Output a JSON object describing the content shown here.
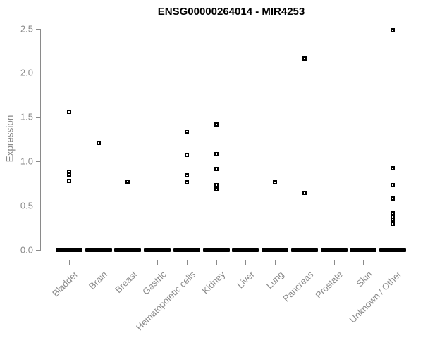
{
  "chart_data": {
    "type": "scatter",
    "title": "ENSG00000264014 - MIR4253",
    "xlabel": "",
    "ylabel": "Expression",
    "ylim": [
      0.0,
      2.5
    ],
    "ytick_labels": [
      "0.0",
      "0.5",
      "1.0",
      "1.5",
      "2.0",
      "2.5"
    ],
    "grid": false,
    "legend_position": "none",
    "marker": "small-open-black-square",
    "categories": [
      "Bladder",
      "Brain",
      "Breast",
      "Gastric",
      "Hematopoietic cells",
      "Kidney",
      "Liver",
      "Lung",
      "Pancreas",
      "Prostate",
      "Skin",
      "Unknown / Other"
    ],
    "series": [
      {
        "name": "Bladder",
        "values": [
          1.56,
          0.88,
          0.85,
          0.78
        ],
        "zero_cluster": true
      },
      {
        "name": "Brain",
        "values": [
          1.21
        ],
        "zero_cluster": true
      },
      {
        "name": "Breast",
        "values": [
          0.77
        ],
        "zero_cluster": true
      },
      {
        "name": "Gastric",
        "values": [],
        "zero_cluster": true
      },
      {
        "name": "Hematopoietic cells",
        "values": [
          1.33,
          1.07,
          0.84,
          0.76
        ],
        "zero_cluster": true
      },
      {
        "name": "Kidney",
        "values": [
          1.41,
          1.08,
          0.91,
          0.73,
          0.68
        ],
        "zero_cluster": true
      },
      {
        "name": "Liver",
        "values": [],
        "zero_cluster": true
      },
      {
        "name": "Lung",
        "values": [
          0.76
        ],
        "zero_cluster": true
      },
      {
        "name": "Pancreas",
        "values": [
          2.16,
          0.64
        ],
        "zero_cluster": true
      },
      {
        "name": "Prostate",
        "values": [],
        "zero_cluster": true
      },
      {
        "name": "Skin",
        "values": [],
        "zero_cluster": true
      },
      {
        "name": "Unknown / Other",
        "values": [
          2.48,
          0.92,
          0.73,
          0.58,
          0.41,
          0.37,
          0.34,
          0.29
        ],
        "zero_cluster": true
      }
    ],
    "zero_cluster_note": "every category shows a thick dashed black bar at y=0 formed by many overlapping samples with expression 0",
    "colors": {
      "marker": "#000000",
      "axis": "#8a8a8a",
      "axis_text": "#8a8a8a",
      "title_text": "#000000",
      "background": "#ffffff"
    }
  }
}
